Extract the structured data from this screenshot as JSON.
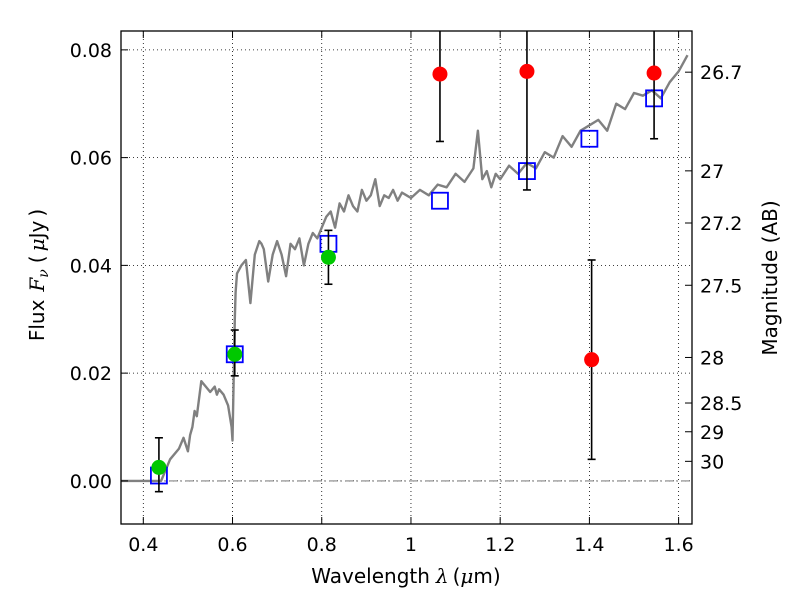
{
  "chart_data": {
    "type": "scatter",
    "title": "",
    "xlabel_text": "Wavelength",
    "xlabel_symbol": "λ",
    "xlabel_unit_open": "(",
    "xlabel_unit_mu": "μ",
    "xlabel_unit_rest": "m)",
    "ylabel_text": "Flux",
    "ylabel_symbol": "F",
    "ylabel_subscript": "ν",
    "ylabel_unit_open": "(",
    "ylabel_unit_mu": "μ",
    "ylabel_unit_rest": "Jy",
    "ylabel_unit_close": ")",
    "y2label": "Magnitude (AB)",
    "xlim": [
      0.35,
      1.63
    ],
    "ylim": [
      -0.008,
      0.0835
    ],
    "grid": true,
    "x_ticks": [
      {
        "value": 0.4,
        "label": "0.4"
      },
      {
        "value": 0.6,
        "label": "0.6"
      },
      {
        "value": 0.8,
        "label": "0.8"
      },
      {
        "value": 1.0,
        "label": "1"
      },
      {
        "value": 1.2,
        "label": "1.2"
      },
      {
        "value": 1.4,
        "label": "1.4"
      },
      {
        "value": 1.6,
        "label": "1.6"
      }
    ],
    "y_ticks": [
      {
        "value": 0.0,
        "label": "0.00"
      },
      {
        "value": 0.02,
        "label": "0.02"
      },
      {
        "value": 0.04,
        "label": "0.04"
      },
      {
        "value": 0.06,
        "label": "0.06"
      },
      {
        "value": 0.08,
        "label": "0.08"
      }
    ],
    "magnitude_ticks": [
      {
        "label": "26.7",
        "mag": 26.7
      },
      {
        "label": "27",
        "mag": 27.0
      },
      {
        "label": "27.2",
        "mag": 27.2
      },
      {
        "label": "27.5",
        "mag": 27.5
      },
      {
        "label": "28",
        "mag": 28.0
      },
      {
        "label": "28.5",
        "mag": 28.5
      },
      {
        "label": "29",
        "mag": 29.0
      },
      {
        "label": "30",
        "mag": 30.0
      }
    ],
    "series": [
      {
        "kind": "line",
        "color": "#808080",
        "x": [
          0.35,
          0.44,
          0.46,
          0.48,
          0.49,
          0.5,
          0.505,
          0.51,
          0.515,
          0.52,
          0.53,
          0.54,
          0.55,
          0.56,
          0.565,
          0.57,
          0.58,
          0.59,
          0.598,
          0.6,
          0.605,
          0.607,
          0.61,
          0.62,
          0.63,
          0.64,
          0.65,
          0.66,
          0.665,
          0.67,
          0.68,
          0.69,
          0.7,
          0.71,
          0.72,
          0.73,
          0.74,
          0.75,
          0.76,
          0.77,
          0.78,
          0.79,
          0.8,
          0.81,
          0.82,
          0.83,
          0.84,
          0.85,
          0.86,
          0.87,
          0.88,
          0.89,
          0.9,
          0.91,
          0.92,
          0.93,
          0.94,
          0.95,
          0.96,
          0.97,
          0.98,
          0.99,
          1.0,
          1.02,
          1.04,
          1.06,
          1.08,
          1.1,
          1.12,
          1.14,
          1.15,
          1.16,
          1.17,
          1.18,
          1.19,
          1.2,
          1.22,
          1.24,
          1.26,
          1.28,
          1.3,
          1.32,
          1.34,
          1.36,
          1.38,
          1.4,
          1.42,
          1.44,
          1.46,
          1.48,
          1.5,
          1.52,
          1.54,
          1.56,
          1.58,
          1.6,
          1.62
        ],
        "y": [
          0.0,
          0.0,
          0.004,
          0.006,
          0.008,
          0.0055,
          0.0085,
          0.01,
          0.013,
          0.012,
          0.0185,
          0.0175,
          0.0165,
          0.0175,
          0.016,
          0.017,
          0.016,
          0.014,
          0.01,
          0.0075,
          0.03,
          0.035,
          0.0385,
          0.04,
          0.041,
          0.033,
          0.042,
          0.0445,
          0.044,
          0.043,
          0.037,
          0.042,
          0.0445,
          0.042,
          0.038,
          0.044,
          0.043,
          0.045,
          0.04,
          0.044,
          0.046,
          0.045,
          0.047,
          0.049,
          0.05,
          0.047,
          0.0515,
          0.05,
          0.053,
          0.051,
          0.05,
          0.054,
          0.052,
          0.053,
          0.056,
          0.051,
          0.053,
          0.0525,
          0.054,
          0.052,
          0.0535,
          0.053,
          0.0525,
          0.054,
          0.053,
          0.055,
          0.0545,
          0.057,
          0.0555,
          0.058,
          0.065,
          0.056,
          0.0575,
          0.0545,
          0.057,
          0.056,
          0.0585,
          0.057,
          0.059,
          0.058,
          0.061,
          0.06,
          0.064,
          0.062,
          0.065,
          0.066,
          0.067,
          0.065,
          0.07,
          0.069,
          0.072,
          0.0715,
          0.0725,
          0.071,
          0.074,
          0.076,
          0.079
        ]
      },
      {
        "kind": "scatter",
        "marker": "square-open",
        "color": "#0000ff",
        "x": [
          0.435,
          0.605,
          0.815,
          1.065,
          1.26,
          1.4,
          1.545
        ],
        "y": [
          0.001,
          0.0235,
          0.044,
          0.052,
          0.0575,
          0.0635,
          0.071
        ]
      },
      {
        "kind": "scatter",
        "marker": "circle-filled",
        "color": "#00c800",
        "x": [
          0.435,
          0.605,
          0.815
        ],
        "y": [
          0.0025,
          0.0235,
          0.0415
        ],
        "err_low": [
          0.0045,
          0.004,
          0.005
        ],
        "err_high": [
          0.0055,
          0.0045,
          0.005
        ]
      },
      {
        "kind": "scatter",
        "marker": "circle-filled",
        "color": "#ff0000",
        "x": [
          1.065,
          1.26,
          1.405,
          1.545
        ],
        "y": [
          0.0755,
          0.076,
          0.0225,
          0.0757
        ],
        "err_low": [
          0.0125,
          0.022,
          0.0185,
          0.0122
        ],
        "err_high": [
          0.01,
          0.01,
          0.0185,
          0.01
        ]
      }
    ]
  }
}
